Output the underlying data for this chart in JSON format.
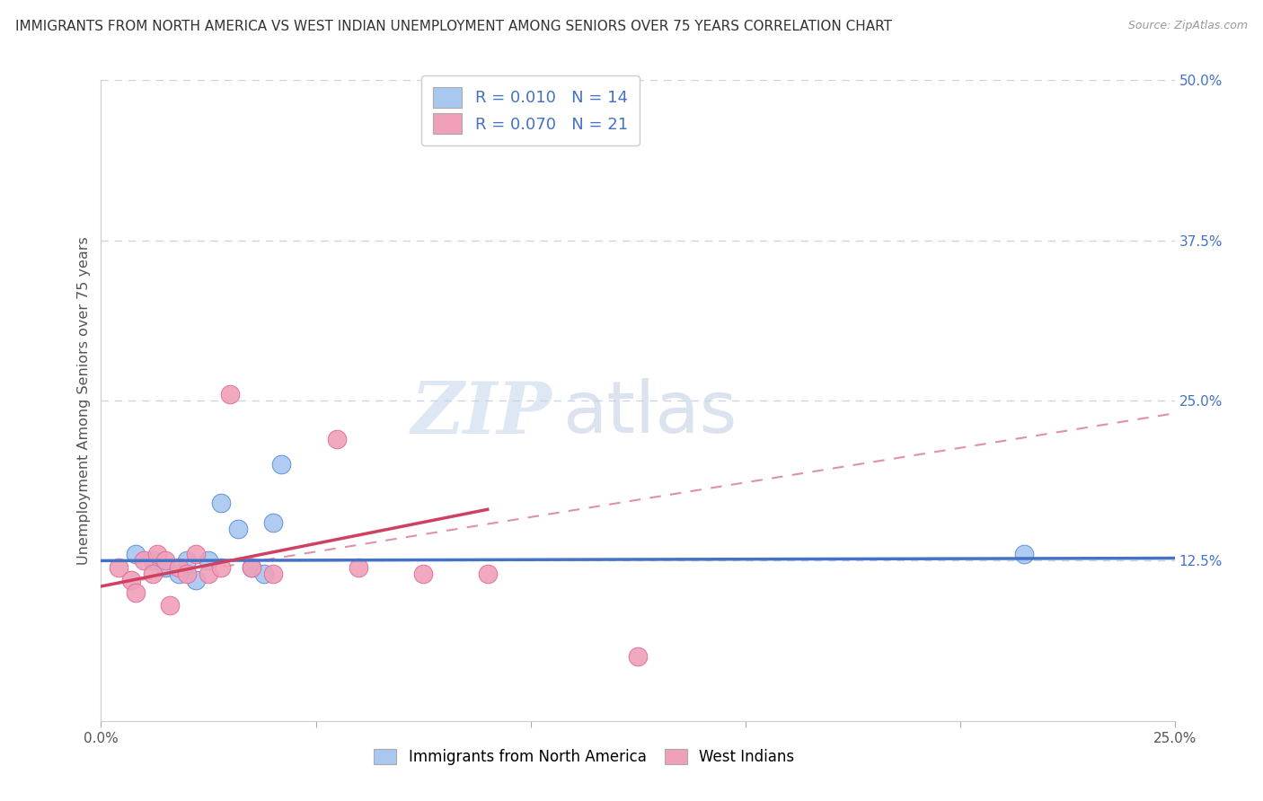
{
  "title": "IMMIGRANTS FROM NORTH AMERICA VS WEST INDIAN UNEMPLOYMENT AMONG SENIORS OVER 75 YEARS CORRELATION CHART",
  "source": "Source: ZipAtlas.com",
  "ylabel": "Unemployment Among Seniors over 75 years",
  "xlim": [
    0.0,
    0.25
  ],
  "ylim": [
    0.0,
    0.5
  ],
  "blue_R": "0.010",
  "blue_N": "14",
  "pink_R": "0.070",
  "pink_N": "21",
  "blue_color": "#A8C8F0",
  "pink_color": "#F0A0B8",
  "blue_line_color": "#4472C4",
  "pink_line_color": "#D04060",
  "pink_dash_color": "#E090A8",
  "blue_dot_color": "#6090D8",
  "pink_dot_color": "#E070A0",
  "background_color": "#FFFFFF",
  "grid_color": "#C8D4E8",
  "watermark_zip": "ZIP",
  "watermark_atlas": "atlas",
  "legend_label_blue": "Immigrants from North America",
  "legend_label_pink": "West Indians",
  "blue_scatter_x": [
    0.008,
    0.012,
    0.015,
    0.018,
    0.02,
    0.022,
    0.025,
    0.028,
    0.032,
    0.035,
    0.038,
    0.04,
    0.042,
    0.215
  ],
  "blue_scatter_y": [
    0.13,
    0.125,
    0.12,
    0.115,
    0.125,
    0.11,
    0.125,
    0.17,
    0.15,
    0.12,
    0.115,
    0.155,
    0.2,
    0.13
  ],
  "pink_scatter_x": [
    0.004,
    0.007,
    0.008,
    0.01,
    0.012,
    0.013,
    0.015,
    0.016,
    0.018,
    0.02,
    0.022,
    0.025,
    0.028,
    0.03,
    0.035,
    0.04,
    0.055,
    0.06,
    0.075,
    0.09,
    0.125
  ],
  "pink_scatter_y": [
    0.12,
    0.11,
    0.1,
    0.125,
    0.115,
    0.13,
    0.125,
    0.09,
    0.12,
    0.115,
    0.13,
    0.115,
    0.12,
    0.255,
    0.12,
    0.115,
    0.22,
    0.12,
    0.115,
    0.115,
    0.05
  ],
  "blue_trendline_x": [
    0.0,
    0.25
  ],
  "blue_trendline_y": [
    0.125,
    0.127
  ],
  "pink_trendline_x": [
    0.0,
    0.09
  ],
  "pink_trendline_y": [
    0.105,
    0.165
  ],
  "pink_dashline_x": [
    0.0,
    0.25
  ],
  "pink_dashline_y": [
    0.105,
    0.24
  ]
}
